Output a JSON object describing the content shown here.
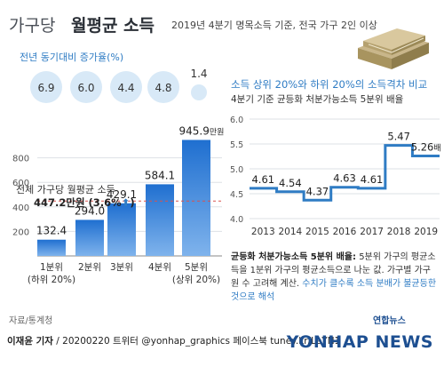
{
  "header": {
    "title_thin": "가구당",
    "title_bold": "월평균 소득",
    "subtitle": "2019년 4분기 명목소득 기준, 전국 가구 2인 이상"
  },
  "growth": {
    "label": "전년 동기대비 증가율(%)",
    "values": [
      "6.9",
      "6.0",
      "4.4",
      "4.8",
      "1.4"
    ],
    "circle_color": "#d8e9f7"
  },
  "yoy": {
    "label": "전체 가구당 월평균 소득",
    "value": "447.2만원 (3.6%",
    "arrow": "⬆",
    "close": ")"
  },
  "right": {
    "title1": "소득 상위 20%와 하위 20%의 소득격차 비교",
    "title2": "4분기 기준 균등화 처분가능소득 5분위 배율"
  },
  "note": {
    "bold": "균등화 처분가능소득 5분위 배율:",
    "text1": " 5분위 가구의 평균소득을 1분위 가구의 평균소득으로 나눈 값. 가구별 가구원 수 고려해 계산.",
    "highlight": " 수치가 클수록 소득 분배가 불균등한 것으로 해석"
  },
  "source": "자료/통계청",
  "footer": {
    "byline": "이재윤 기자",
    "rest": " / 20200220  트위터 @yonhap_graphics  페이스북 tuney.kr/LeYN1",
    "logo_small": "연합뉴스",
    "logo_main": "YONHAP NEWS"
  },
  "colors": {
    "bar_gradient_top": "#1f6fd0",
    "bar_gradient_bottom": "#7fb3ec",
    "line": "#2f7cc4",
    "accent_blue": "#2f7cc4",
    "dashed_red": "#d9534f"
  },
  "chart_data": [
    {
      "type": "bar",
      "categories": [
        "1분위\n(하위 20%)",
        "2분위",
        "3분위",
        "4분위",
        "5분위\n(상위 20%)"
      ],
      "values": [
        132.4,
        294.0,
        429.1,
        584.1,
        945.9
      ],
      "value_labels": [
        "132.4",
        "294.0",
        "429.1",
        "584.1",
        "945.9"
      ],
      "value_suffix": "만원",
      "yticks": [
        "200",
        "400",
        "600",
        "800"
      ],
      "ylim": [
        0,
        1000
      ],
      "reference_line": 447.2,
      "grid": true
    },
    {
      "type": "line",
      "x": [
        "2013",
        "2014",
        "2015",
        "2016",
        "2017",
        "2018",
        "2019"
      ],
      "values": [
        4.61,
        4.54,
        4.37,
        4.63,
        4.61,
        5.47,
        5.26
      ],
      "value_labels": [
        "4.61",
        "4.54",
        "4.37",
        "4.63",
        "4.61",
        "5.47",
        "5.26"
      ],
      "value_suffix": "배",
      "yticks": [
        "4.0",
        "4.5",
        "5.0",
        "5.5",
        "6.0"
      ],
      "ylim": [
        4.0,
        6.0
      ],
      "grid": true,
      "step": true
    }
  ]
}
